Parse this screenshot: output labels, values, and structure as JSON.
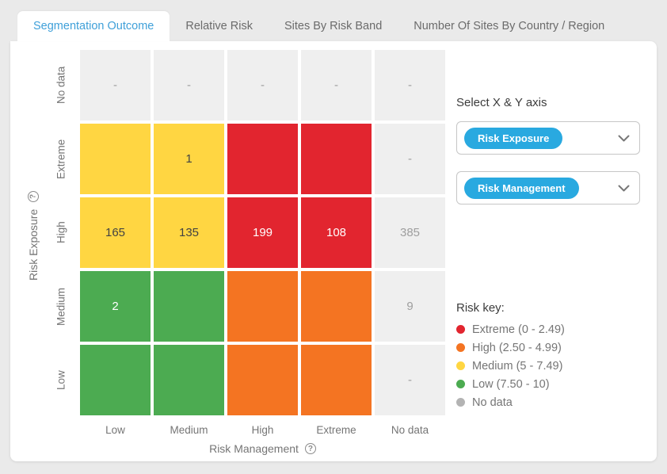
{
  "tabs": [
    {
      "label": "Segmentation Outcome",
      "active": true
    },
    {
      "label": "Relative Risk",
      "active": false
    },
    {
      "label": "Sites By Risk Band",
      "active": false
    },
    {
      "label": "Number Of Sites By Country / Region",
      "active": false
    }
  ],
  "chart_data": {
    "type": "heatmap",
    "x_axis": {
      "label": "Risk Management",
      "categories": [
        "Low",
        "Medium",
        "High",
        "Extreme",
        "No data"
      ]
    },
    "y_axis": {
      "label": "Risk Exposure",
      "categories": [
        "No data",
        "Extreme",
        "High",
        "Medium",
        "Low"
      ]
    },
    "cells": [
      [
        {
          "value": "-",
          "band": "nodata"
        },
        {
          "value": "-",
          "band": "nodata"
        },
        {
          "value": "-",
          "band": "nodata"
        },
        {
          "value": "-",
          "band": "nodata"
        },
        {
          "value": "-",
          "band": "nodata"
        }
      ],
      [
        {
          "value": "",
          "band": "medium"
        },
        {
          "value": "1",
          "band": "medium"
        },
        {
          "value": "",
          "band": "extreme"
        },
        {
          "value": "",
          "band": "extreme"
        },
        {
          "value": "-",
          "band": "nodata"
        }
      ],
      [
        {
          "value": "165",
          "band": "medium"
        },
        {
          "value": "135",
          "band": "medium"
        },
        {
          "value": "199",
          "band": "extreme"
        },
        {
          "value": "108",
          "band": "extreme"
        },
        {
          "value": "385",
          "band": "nodata"
        }
      ],
      [
        {
          "value": "2",
          "band": "low"
        },
        {
          "value": "",
          "band": "low"
        },
        {
          "value": "",
          "band": "high"
        },
        {
          "value": "",
          "band": "high"
        },
        {
          "value": "9",
          "band": "nodata"
        }
      ],
      [
        {
          "value": "",
          "band": "low"
        },
        {
          "value": "",
          "band": "low"
        },
        {
          "value": "",
          "band": "high"
        },
        {
          "value": "",
          "band": "high"
        },
        {
          "value": "-",
          "band": "nodata"
        }
      ]
    ],
    "legend_position": "right"
  },
  "panel": {
    "title": "Select X & Y axis",
    "y_axis_select": {
      "value": "Risk Exposure"
    },
    "x_axis_select": {
      "value": "Risk Management"
    },
    "risk_key": {
      "title": "Risk key:",
      "items": [
        {
          "label": "Extreme (0 - 2.49)",
          "band": "extreme"
        },
        {
          "label": "High (2.50 - 4.99)",
          "band": "high"
        },
        {
          "label": "Medium (5 - 7.49)",
          "band": "medium"
        },
        {
          "label": "Low (7.50 - 10)",
          "band": "low"
        },
        {
          "label": "No data",
          "band": "nodata"
        }
      ]
    }
  },
  "colors": {
    "extreme": "#e2252f",
    "high": "#f47422",
    "medium": "#ffd642",
    "low": "#4cab51",
    "nodata_cell": "#efefef",
    "nodata_dot": "#b3b3b3",
    "accent_blue": "#29a9e0",
    "active_tab_text": "#3fa0d9",
    "cell_text_dark": "#424242",
    "cell_text_light": "#ffffff",
    "cell_text_muted": "#9e9e9e"
  },
  "icons": {
    "help": "?"
  }
}
